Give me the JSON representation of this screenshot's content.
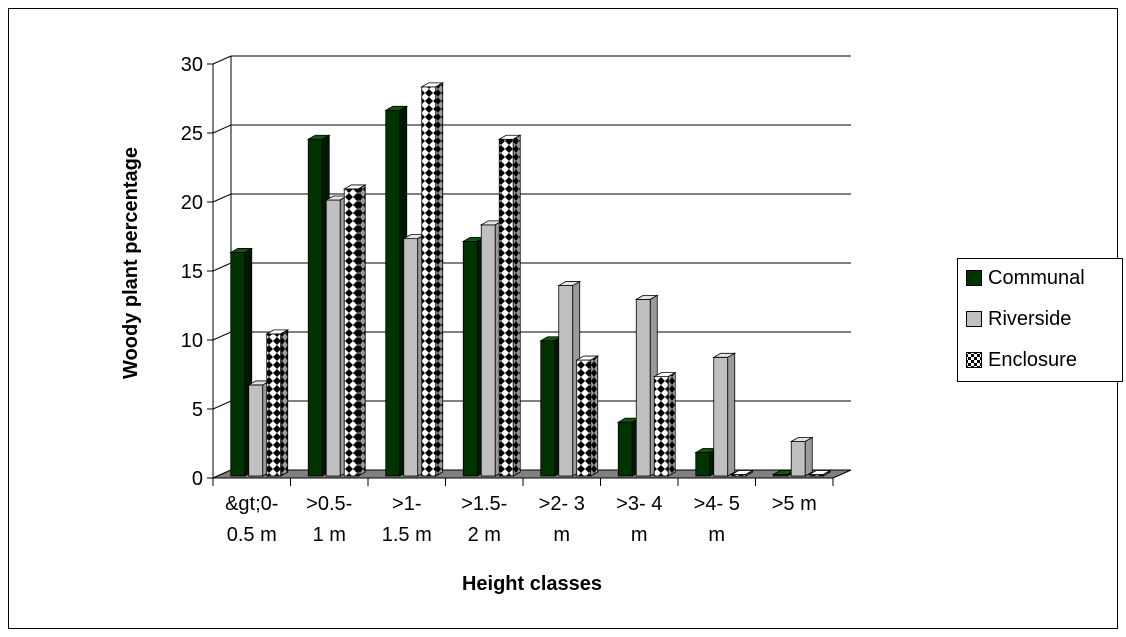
{
  "chart_data": {
    "type": "bar",
    "title": "",
    "xlabel": "Height classes",
    "ylabel": "Woody plant percentage",
    "ylim": [
      0,
      30
    ],
    "yticks": [
      0,
      5,
      10,
      15,
      20,
      25,
      30
    ],
    "grid": true,
    "legend_position": "right",
    "categories": [
      [
        "&gt;0-",
        "0.5 m"
      ],
      [
        ">0.5-",
        "1 m"
      ],
      [
        ">1-",
        "1.5 m"
      ],
      [
        ">1.5-",
        "2 m"
      ],
      [
        ">2- 3",
        "m"
      ],
      [
        ">3- 4",
        "m"
      ],
      [
        ">4- 5",
        "m"
      ],
      [
        ">5 m",
        ""
      ]
    ],
    "series": [
      {
        "name": "Communal",
        "values": [
          16.2,
          24.4,
          26.5,
          17.0,
          9.8,
          3.9,
          1.7,
          0
        ],
        "color": "#003300",
        "pattern": "solid"
      },
      {
        "name": "Riverside",
        "values": [
          6.6,
          20.0,
          17.2,
          18.2,
          13.8,
          12.8,
          8.6,
          2.5
        ],
        "color": "#c0c0c0",
        "pattern": "solid"
      },
      {
        "name": "Enclosure",
        "values": [
          10.3,
          20.8,
          28.2,
          24.4,
          8.4,
          7.2,
          0,
          0
        ],
        "color": "#000000",
        "pattern": "diamond-checker"
      }
    ]
  }
}
